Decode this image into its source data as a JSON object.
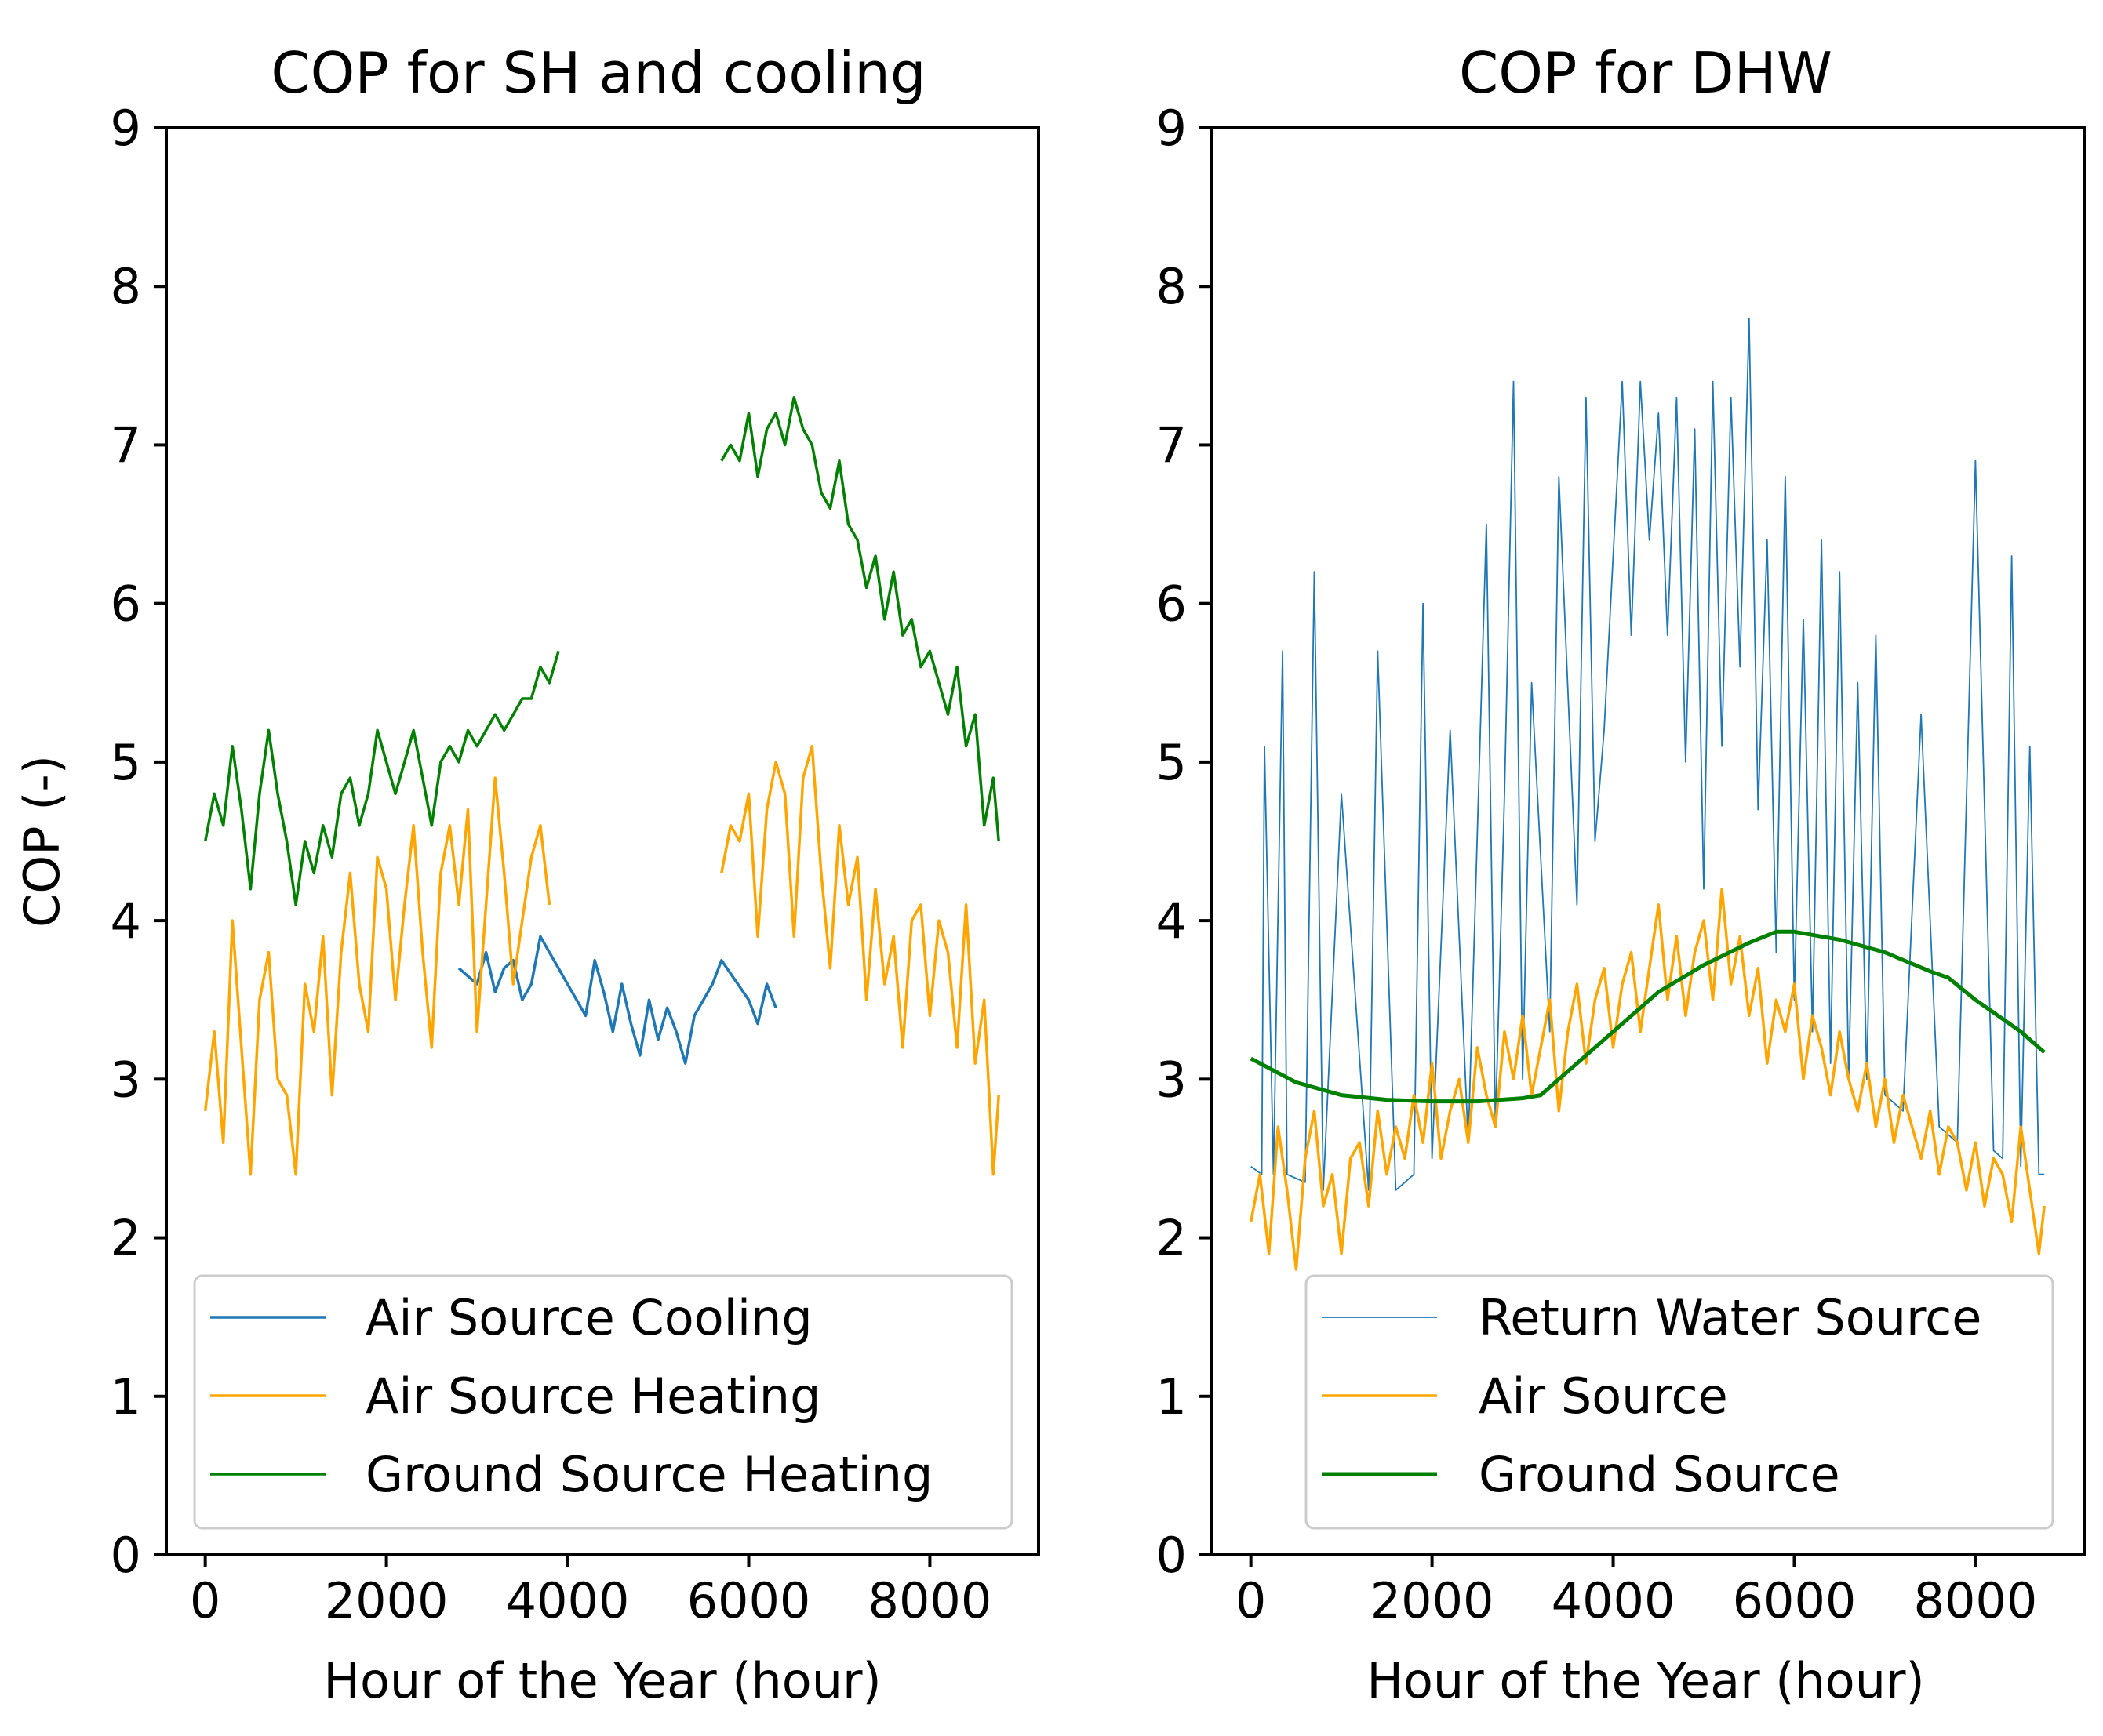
{
  "chart_data": [
    {
      "type": "line",
      "title": "COP for SH and cooling",
      "xlabel": "Hour of the Year (hour)",
      "ylabel": "COP (-)",
      "xlim": [
        -430,
        9200
      ],
      "ylim": [
        0,
        9
      ],
      "xticks": [
        0,
        2000,
        4000,
        6000,
        8000
      ],
      "yticks": [
        0,
        1,
        2,
        3,
        4,
        5,
        6,
        7,
        8,
        9
      ],
      "xtick_labels": [
        "0",
        "2000",
        "4000",
        "6000",
        "8000"
      ],
      "ytick_labels": [
        "0",
        "1",
        "2",
        "3",
        "4",
        "5",
        "6",
        "7",
        "8",
        "9"
      ],
      "legend_position": "lower-center",
      "series": [
        {
          "name": "Air Source Cooling",
          "label": "Air Source Cooling",
          "color": "#1f77b4",
          "x": [
            2800,
            2900,
            3000,
            3100,
            3200,
            3300,
            3400,
            3500,
            3600,
            3700,
            3800,
            3900,
            4000,
            4100,
            4200,
            4300,
            4400,
            4500,
            4600,
            4700,
            4800,
            4900,
            5000,
            5100,
            5200,
            5300,
            5400,
            5500,
            5600,
            5700,
            6000,
            6100,
            6200,
            6300
          ],
          "values": [
            3.7,
            3.65,
            3.6,
            3.8,
            3.55,
            3.7,
            3.75,
            3.5,
            3.6,
            3.9,
            3.8,
            3.7,
            3.6,
            3.5,
            3.4,
            3.75,
            3.55,
            3.3,
            3.6,
            3.35,
            3.15,
            3.5,
            3.25,
            3.45,
            3.3,
            3.1,
            3.4,
            3.5,
            3.6,
            3.75,
            3.5,
            3.35,
            3.6,
            3.45
          ]
        },
        {
          "name": "Air Source Heating",
          "label": "Air Source Heating",
          "color": "#ffa500",
          "x": [
            0,
            100,
            200,
            300,
            400,
            500,
            600,
            700,
            800,
            900,
            1000,
            1100,
            1200,
            1300,
            1400,
            1500,
            1600,
            1700,
            1800,
            1900,
            2000,
            2100,
            2200,
            2300,
            2400,
            2500,
            2600,
            2700,
            2800,
            2900,
            3000,
            3100,
            3200,
            3300,
            3400,
            3500,
            3600,
            3700,
            3800,
            null,
            5700,
            5800,
            5900,
            6000,
            6100,
            6200,
            6300,
            6400,
            6500,
            6600,
            6700,
            6800,
            6900,
            7000,
            7100,
            7200,
            7300,
            7400,
            7500,
            7600,
            7700,
            7800,
            7900,
            8000,
            8100,
            8200,
            8300,
            8400,
            8500,
            8600,
            8700,
            8760
          ],
          "values": [
            2.8,
            3.3,
            2.6,
            4.0,
            3.2,
            2.4,
            3.5,
            3.8,
            3.0,
            2.9,
            2.4,
            3.6,
            3.3,
            3.9,
            2.9,
            3.8,
            4.3,
            3.6,
            3.3,
            4.4,
            4.2,
            3.5,
            4.1,
            4.6,
            3.8,
            3.2,
            4.3,
            4.6,
            4.1,
            4.7,
            3.3,
            4.1,
            4.9,
            4.3,
            3.6,
            4.0,
            4.4,
            4.6,
            4.1,
            null,
            4.3,
            4.6,
            4.5,
            4.8,
            3.9,
            4.7,
            5.0,
            4.8,
            3.9,
            4.9,
            5.1,
            4.3,
            3.7,
            4.6,
            4.1,
            4.4,
            3.5,
            4.2,
            3.6,
            3.9,
            3.2,
            4.0,
            4.1,
            3.4,
            4.0,
            3.8,
            3.2,
            4.1,
            3.1,
            3.5,
            2.4,
            2.9
          ]
        },
        {
          "name": "Ground Source Heating",
          "label": "Ground Source Heating",
          "color": "#008000",
          "x": [
            0,
            100,
            200,
            300,
            400,
            500,
            600,
            700,
            800,
            900,
            1000,
            1100,
            1200,
            1300,
            1400,
            1500,
            1600,
            1700,
            1800,
            1900,
            2000,
            2100,
            2200,
            2300,
            2400,
            2500,
            2600,
            2700,
            2800,
            2900,
            3000,
            3100,
            3200,
            3300,
            3400,
            3500,
            3600,
            3700,
            3800,
            3900,
            null,
            5700,
            5800,
            5900,
            6000,
            6100,
            6200,
            6300,
            6400,
            6500,
            6600,
            6700,
            6800,
            6900,
            7000,
            7100,
            7200,
            7300,
            7400,
            7500,
            7600,
            7700,
            7800,
            7900,
            8000,
            8100,
            8200,
            8300,
            8400,
            8500,
            8600,
            8700,
            8760
          ],
          "values": [
            4.5,
            4.8,
            4.6,
            5.1,
            4.7,
            4.2,
            4.8,
            5.2,
            4.8,
            4.5,
            4.1,
            4.5,
            4.3,
            4.6,
            4.4,
            4.8,
            4.9,
            4.6,
            4.8,
            5.2,
            5.0,
            4.8,
            5.0,
            5.2,
            4.9,
            4.6,
            5.0,
            5.1,
            5.0,
            5.2,
            5.1,
            5.2,
            5.3,
            5.2,
            5.3,
            5.4,
            5.4,
            5.6,
            5.5,
            5.7,
            null,
            6.9,
            7.0,
            6.9,
            7.2,
            6.8,
            7.1,
            7.2,
            7.0,
            7.3,
            7.1,
            7.0,
            6.7,
            6.6,
            6.9,
            6.5,
            6.4,
            6.1,
            6.3,
            5.9,
            6.2,
            5.8,
            5.9,
            5.6,
            5.7,
            5.5,
            5.3,
            5.6,
            5.1,
            5.3,
            4.6,
            4.9,
            4.5
          ]
        }
      ]
    },
    {
      "type": "line",
      "title": "COP for DHW",
      "xlabel": "Hour of the Year (hour)",
      "ylabel": "",
      "xlim": [
        -430,
        9200
      ],
      "ylim": [
        0,
        9
      ],
      "xticks": [
        0,
        2000,
        4000,
        6000,
        8000
      ],
      "yticks": [
        0,
        1,
        2,
        3,
        4,
        5,
        6,
        7,
        8,
        9
      ],
      "xtick_labels": [
        "0",
        "2000",
        "4000",
        "6000",
        "8000"
      ],
      "ytick_labels": [
        "0",
        "1",
        "2",
        "3",
        "4",
        "5",
        "6",
        "7",
        "8",
        "9"
      ],
      "legend_position": "lower-right",
      "series": [
        {
          "name": "Return Water Source",
          "label": "Return Water Source",
          "color": "#1f77b4",
          "x": [
            0,
            120,
            150,
            250,
            350,
            400,
            600,
            700,
            800,
            1000,
            1300,
            1400,
            1600,
            1800,
            1900,
            2000,
            2200,
            2400,
            2600,
            2700,
            2800,
            2900,
            3000,
            3100,
            3300,
            3400,
            3600,
            3700,
            3800,
            3900,
            4000,
            4100,
            4200,
            4300,
            4400,
            4500,
            4600,
            4700,
            4800,
            4900,
            5000,
            5100,
            5200,
            5300,
            5400,
            5500,
            5600,
            5700,
            5800,
            5900,
            6000,
            6100,
            6200,
            6300,
            6400,
            6500,
            6600,
            6700,
            6800,
            6900,
            7000,
            7200,
            7400,
            7600,
            7800,
            8000,
            8200,
            8300,
            8400,
            8500,
            8600,
            8700,
            8760
          ],
          "values": [
            2.45,
            2.4,
            5.1,
            2.4,
            5.7,
            2.4,
            2.35,
            6.2,
            2.3,
            4.8,
            2.3,
            5.7,
            2.3,
            2.4,
            6.0,
            2.5,
            5.2,
            2.6,
            6.5,
            2.7,
            4.8,
            7.4,
            3.0,
            5.5,
            3.3,
            6.8,
            4.1,
            7.3,
            4.5,
            5.2,
            6.3,
            7.4,
            5.8,
            7.4,
            6.4,
            7.2,
            5.8,
            7.3,
            5.0,
            7.1,
            4.2,
            7.4,
            5.1,
            7.3,
            5.6,
            7.8,
            4.7,
            6.4,
            3.8,
            6.8,
            3.5,
            5.9,
            3.3,
            6.4,
            3.1,
            6.2,
            3.0,
            5.5,
            3.0,
            5.8,
            2.9,
            2.8,
            5.3,
            2.7,
            2.6,
            6.9,
            2.55,
            2.5,
            6.3,
            2.45,
            5.1,
            2.4,
            2.4
          ]
        },
        {
          "name": "Air Source",
          "label": "Air Source",
          "color": "#ffa500",
          "x": [
            0,
            100,
            200,
            300,
            400,
            500,
            600,
            700,
            800,
            900,
            1000,
            1100,
            1200,
            1300,
            1400,
            1500,
            1600,
            1700,
            1800,
            1900,
            2000,
            2100,
            2200,
            2300,
            2400,
            2500,
            2600,
            2700,
            2800,
            2900,
            3000,
            3100,
            3200,
            3300,
            3400,
            3500,
            3600,
            3700,
            3800,
            3900,
            4000,
            4100,
            4200,
            4300,
            4400,
            4500,
            4600,
            4700,
            4800,
            4900,
            5000,
            5100,
            5200,
            5300,
            5400,
            5500,
            5600,
            5700,
            5800,
            5900,
            6000,
            6100,
            6200,
            6300,
            6400,
            6500,
            6600,
            6700,
            6800,
            6900,
            7000,
            7100,
            7200,
            7300,
            7400,
            7500,
            7600,
            7700,
            7800,
            7900,
            8000,
            8100,
            8200,
            8300,
            8400,
            8500,
            8600,
            8700,
            8760
          ],
          "values": [
            2.1,
            2.4,
            1.9,
            2.7,
            2.3,
            1.8,
            2.5,
            2.8,
            2.2,
            2.4,
            1.9,
            2.5,
            2.6,
            2.2,
            2.8,
            2.4,
            2.7,
            2.5,
            2.9,
            2.6,
            3.1,
            2.5,
            2.8,
            3.0,
            2.6,
            3.2,
            2.9,
            2.7,
            3.3,
            3.0,
            3.4,
            2.9,
            3.2,
            3.5,
            2.8,
            3.3,
            3.6,
            3.1,
            3.5,
            3.7,
            3.2,
            3.6,
            3.8,
            3.3,
            3.7,
            4.1,
            3.5,
            3.9,
            3.4,
            3.8,
            4.0,
            3.5,
            4.2,
            3.6,
            3.9,
            3.4,
            3.7,
            3.1,
            3.5,
            3.3,
            3.6,
            3.0,
            3.4,
            3.2,
            2.9,
            3.3,
            3.0,
            2.8,
            3.1,
            2.7,
            3.0,
            2.6,
            2.9,
            2.7,
            2.5,
            2.8,
            2.4,
            2.7,
            2.6,
            2.3,
            2.6,
            2.2,
            2.5,
            2.4,
            2.1,
            2.7,
            2.3,
            1.9,
            2.2
          ]
        },
        {
          "name": "Ground Source",
          "label": "Ground Source",
          "color": "#008000",
          "x": [
            0,
            500,
            1000,
            1500,
            2000,
            2500,
            3000,
            3200,
            3500,
            4000,
            4500,
            5000,
            5500,
            5800,
            6000,
            6500,
            7000,
            7500,
            7700,
            8000,
            8500,
            8760
          ],
          "values": [
            3.13,
            2.98,
            2.9,
            2.87,
            2.86,
            2.86,
            2.88,
            2.9,
            3.05,
            3.3,
            3.55,
            3.72,
            3.86,
            3.93,
            3.93,
            3.88,
            3.8,
            3.68,
            3.64,
            3.5,
            3.3,
            3.17
          ]
        }
      ]
    }
  ]
}
